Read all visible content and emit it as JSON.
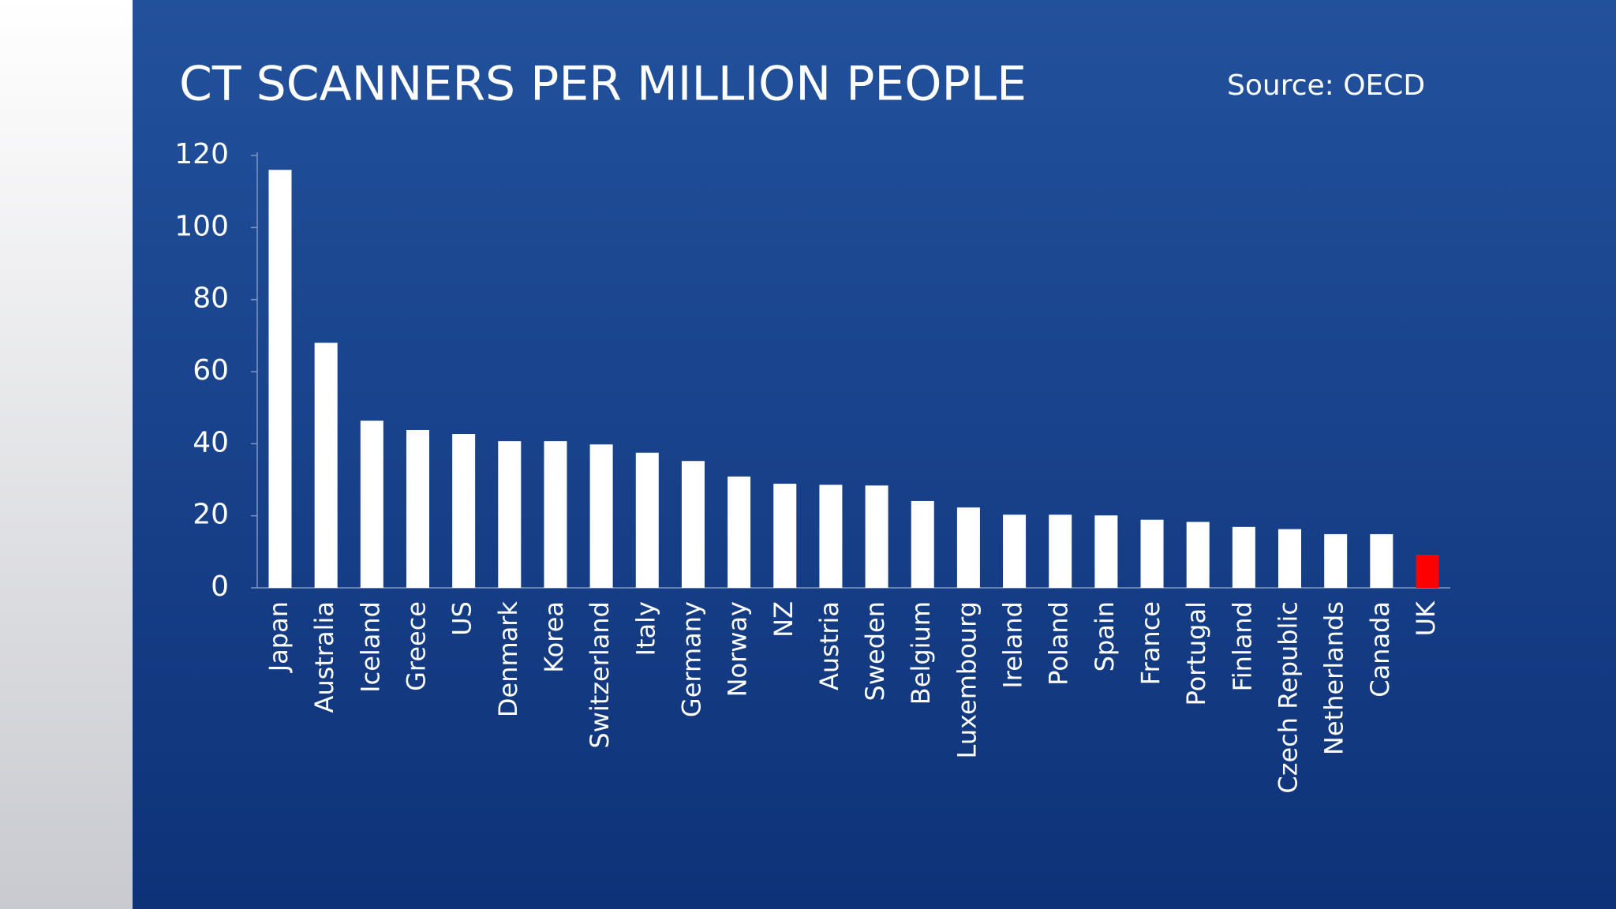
{
  "chart_data": {
    "type": "bar",
    "title": "CT SCANNERS PER MILLION PEOPLE",
    "source": "Source: OECD",
    "categories": [
      "Japan",
      "Australia",
      "Iceland",
      "Greece",
      "US",
      "Denmark",
      "Korea",
      "Switzerland",
      "Italy",
      "Germany",
      "Norway",
      "NZ",
      "Austria",
      "Sweden",
      "Belgium",
      "Luxembourg",
      "Ireland",
      "Poland",
      "Spain",
      "France",
      "Portugal",
      "Finland",
      "Czech Republic",
      "Netherlands",
      "Canada",
      "UK"
    ],
    "values": [
      116,
      68,
      46.4,
      43.8,
      42.7,
      40.7,
      40.7,
      39.8,
      37.5,
      35.2,
      30.9,
      28.9,
      28.6,
      28.4,
      24.1,
      22.3,
      20.3,
      20.3,
      20.1,
      18.9,
      18.3,
      16.9,
      16.3,
      14.9,
      14.9,
      9.2
    ],
    "colors": [
      "#ffffff",
      "#ffffff",
      "#ffffff",
      "#ffffff",
      "#ffffff",
      "#ffffff",
      "#ffffff",
      "#ffffff",
      "#ffffff",
      "#ffffff",
      "#ffffff",
      "#ffffff",
      "#ffffff",
      "#ffffff",
      "#ffffff",
      "#ffffff",
      "#ffffff",
      "#ffffff",
      "#ffffff",
      "#ffffff",
      "#ffffff",
      "#ffffff",
      "#ffffff",
      "#ffffff",
      "#ffffff",
      "#ff0000"
    ],
    "ylim": [
      0,
      120
    ],
    "yticks": [
      0,
      20,
      40,
      60,
      80,
      100,
      120
    ],
    "grid": false
  }
}
